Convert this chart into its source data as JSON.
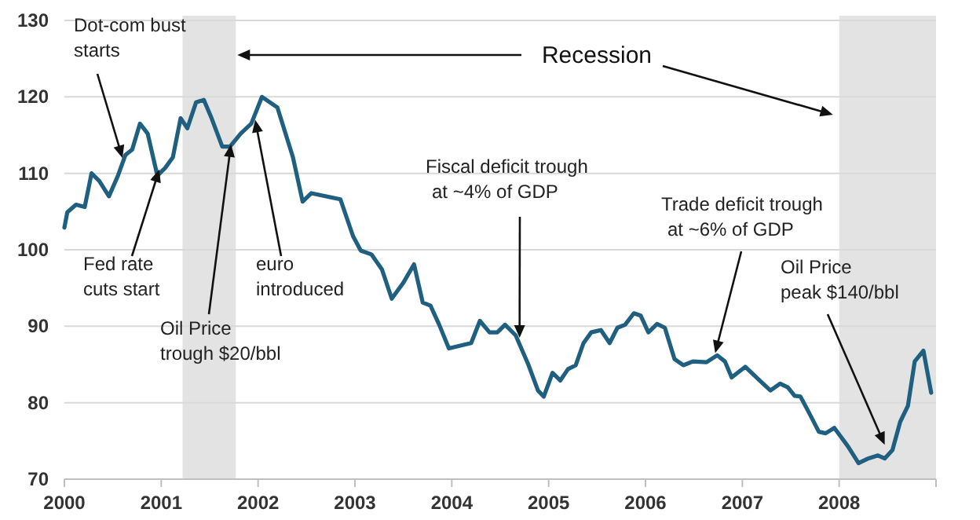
{
  "chart_data": {
    "type": "line",
    "x": [
      2000.0,
      2000.03,
      2000.12,
      2000.21,
      2000.28,
      2000.36,
      2000.46,
      2000.55,
      2000.63,
      2000.7,
      2000.78,
      2000.86,
      2000.96,
      2001.04,
      2001.12,
      2001.2,
      2001.27,
      2001.36,
      2001.44,
      2001.52,
      2001.63,
      2001.71,
      2001.82,
      2001.93,
      2002.04,
      2002.12,
      2002.2,
      2002.36,
      2002.46,
      2002.55,
      2002.85,
      2002.98,
      2003.06,
      2003.17,
      2003.28,
      2003.38,
      2003.5,
      2003.61,
      2003.7,
      2003.78,
      2003.87,
      2003.97,
      2004.2,
      2004.29,
      2004.39,
      2004.47,
      2004.55,
      2004.66,
      2004.79,
      2004.89,
      2004.95,
      2005.04,
      2005.12,
      2005.2,
      2005.28,
      2005.36,
      2005.44,
      2005.54,
      2005.63,
      2005.71,
      2005.79,
      2005.88,
      2005.95,
      2006.03,
      2006.12,
      2006.2,
      2006.3,
      2006.39,
      2006.49,
      2006.63,
      2006.74,
      2006.82,
      2006.89,
      2007.03,
      2007.17,
      2007.29,
      2007.39,
      2007.47,
      2007.54,
      2007.6,
      2007.68,
      2007.79,
      2007.86,
      2007.95,
      2008.09,
      2008.2,
      2008.3,
      2008.4,
      2008.47,
      2008.55,
      2008.63,
      2008.71,
      2008.78,
      2008.87,
      2008.95
    ],
    "series": [
      {
        "color": "#1f5f7f",
        "values": [
          102.9,
          104.9,
          105.9,
          105.6,
          110.0,
          109.0,
          107.0,
          109.6,
          112.4,
          113.1,
          116.5,
          115.2,
          109.7,
          110.7,
          112.1,
          117.2,
          115.9,
          119.3,
          119.6,
          117.2,
          113.5,
          113.5,
          115.2,
          116.5,
          120.0,
          119.3,
          118.6,
          112.1,
          106.3,
          107.4,
          106.6,
          101.8,
          99.9,
          99.4,
          97.4,
          93.6,
          95.7,
          98.1,
          93.1,
          92.7,
          90.2,
          87.1,
          87.8,
          90.7,
          89.2,
          89.2,
          90.2,
          88.8,
          85.0,
          81.6,
          80.8,
          83.9,
          82.9,
          84.4,
          84.9,
          87.8,
          89.2,
          89.5,
          87.8,
          89.8,
          90.2,
          91.7,
          91.4,
          89.2,
          90.3,
          89.8,
          85.7,
          84.9,
          85.4,
          85.3,
          86.2,
          85.4,
          83.3,
          84.7,
          83.0,
          81.6,
          82.5,
          82.0,
          80.9,
          80.8,
          78.9,
          76.2,
          76.0,
          76.7,
          74.3,
          72.1,
          72.7,
          73.1,
          72.7,
          73.8,
          77.5,
          79.6,
          85.4,
          86.8,
          81.3
        ]
      }
    ],
    "xlim": [
      2000,
      2009
    ],
    "xticks": [
      2000,
      2001,
      2002,
      2003,
      2004,
      2005,
      2006,
      2007,
      2008,
      {
        "value": 2009,
        "label": null
      }
    ],
    "ylim": [
      70,
      130
    ],
    "yticks": [
      70,
      80,
      90,
      100,
      110,
      120,
      130
    ],
    "grid": "y",
    "bands": [
      {
        "axis": "x",
        "from": 2001.22,
        "to": 2001.77,
        "color": "#e3e3e3"
      },
      {
        "axis": "x",
        "from": 2008,
        "to": 2009,
        "color": "#e3e3e3"
      }
    ],
    "annotations": [
      {
        "text": "Dot-com bust\nstarts",
        "x": 2000.6,
        "y": 112
      },
      {
        "text": "Fed rate\ncuts start",
        "x": 2000.98,
        "y": 110.5
      },
      {
        "text": "Oil Price\ntrough $20/bbl",
        "x": 2001.72,
        "y": 113.8
      },
      {
        "text": "euro\nintroduced",
        "x": 2001.97,
        "y": 117
      },
      {
        "text": "Fiscal deficit trough\nat ~4% of GDP",
        "x": 2004.7,
        "y": 88.5
      },
      {
        "text": "Trade deficit trough\nat ~6% of GDP",
        "x": 2006.72,
        "y": 86.5
      },
      {
        "text": "Oil Price\npeak $140/bbl",
        "x": 2008.47,
        "y": 74.5
      },
      "Recession"
    ]
  }
}
